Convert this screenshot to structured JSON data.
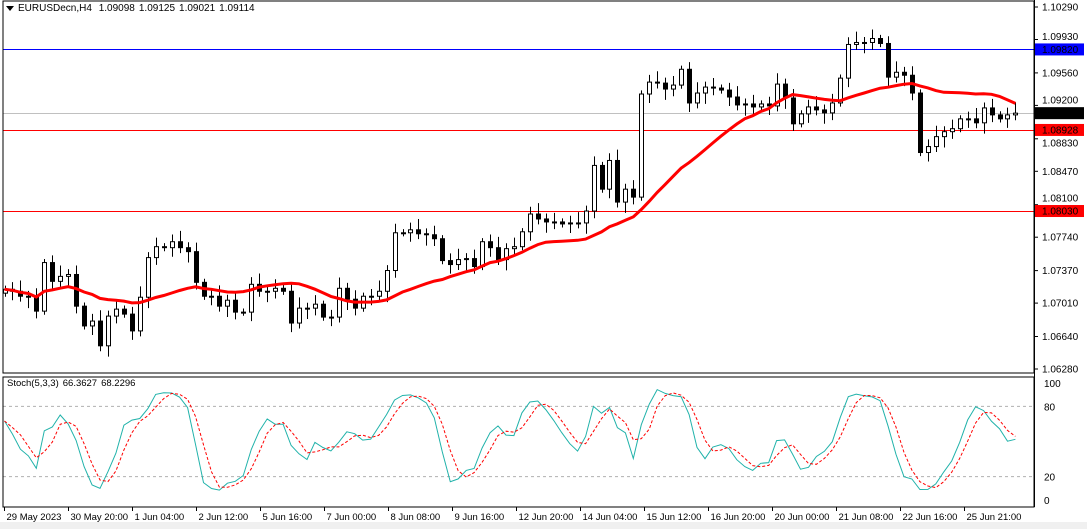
{
  "header": {
    "symbol": "EURUSDecn,H4",
    "open": "1.09098",
    "high": "1.09125",
    "low": "1.09021",
    "close": "1.09114",
    "menu_icon": "triangle-down-icon"
  },
  "stochastic": {
    "label": "Stoch(5,3,3)",
    "main_value": "66.3627",
    "signal_value": "68.2296",
    "axis_labels": [
      "100",
      "80",
      "20",
      "0"
    ],
    "levels": [
      80,
      20
    ],
    "main_color": "#20B2AA",
    "signal_color": "#FF0000"
  },
  "chart_data": {
    "type": "candlestick",
    "price_axis_labels": [
      "1.10290",
      "1.09930",
      "1.09560",
      "1.09200",
      "1.08830",
      "1.08470",
      "1.08100",
      "1.07740",
      "1.07370",
      "1.07010",
      "1.06640",
      "1.06280"
    ],
    "ylim": [
      1.0628,
      1.1029
    ],
    "time_axis_labels": [
      "29 May 2023",
      "30 May 20:00",
      "1 Jun 04:00",
      "2 Jun 12:00",
      "5 Jun 16:00",
      "7 Jun 00:00",
      "8 Jun 08:00",
      "9 Jun 16:00",
      "12 Jun 20:00",
      "14 Jun 04:00",
      "15 Jun 12:00",
      "16 Jun 20:00",
      "20 Jun 00:00",
      "21 Jun 08:00",
      "22 Jun 16:00",
      "25 Jun 21:00"
    ],
    "first_open": 1.0712,
    "closes": [
      1.07163,
      1.07141,
      1.07086,
      1.07075,
      1.06921,
      1.07459,
      1.07251,
      1.07306,
      1.07327,
      1.06976,
      1.06757,
      1.06811,
      1.06537,
      1.06866,
      1.06943,
      1.06888,
      1.06702,
      1.07075,
      1.07514,
      1.07635,
      1.07624,
      1.0769,
      1.07624,
      1.0758,
      1.0724,
      1.07086,
      1.07086,
      1.06976,
      1.07042,
      1.0691,
      1.0691,
      1.07218,
      1.07141,
      1.07141,
      1.07174,
      1.07141,
      1.06789,
      1.06954,
      1.06954,
      1.06998,
      1.06855,
      1.06855,
      1.07174,
      1.07053,
      1.06954,
      1.07086,
      1.07086,
      1.07141,
      1.07371,
      1.07789,
      1.07789,
      1.07822,
      1.07778,
      1.07767,
      1.07723,
      1.07481,
      1.07437,
      1.07492,
      1.07503,
      1.07415,
      1.0769,
      1.07624,
      1.07492,
      1.07613,
      1.07635,
      1.078,
      1.07997,
      1.07942,
      1.07909,
      1.07909,
      1.07887,
      1.07898,
      1.07898,
      1.0803,
      1.08535,
      1.08272,
      1.0859,
      1.08129,
      1.08272,
      1.08184,
      1.09326,
      1.09458,
      1.09447,
      1.09381,
      1.09425,
      1.096,
      1.09227,
      1.09337,
      1.09403,
      1.09392,
      1.0937,
      1.09293,
      1.09205,
      1.09216,
      1.09183,
      1.09216,
      1.09194,
      1.09436,
      1.09282,
      1.08996,
      1.09106,
      1.09183,
      1.0915,
      1.09117,
      1.09227,
      1.09502,
      1.09875,
      1.09897,
      1.09897,
      1.09941,
      1.09886,
      1.09513,
      1.09567,
      1.09534,
      1.09337,
      1.08678,
      1.08744,
      1.08854,
      1.08909,
      1.08942,
      1.09051,
      1.09051,
      1.09007,
      1.09172,
      1.09095,
      1.09051,
      1.09095,
      1.09114
    ],
    "moving_average_color": "#FF0000",
    "horizontal_lines": [
      {
        "price": "1.09820",
        "color": "#0000FF",
        "label_text_color": "#FFFFFF"
      },
      {
        "price": "1.09114",
        "color": "#C0C0C0",
        "label_bg": "#000000",
        "label_text_color": "#FFFFFF"
      },
      {
        "price": "1.08928",
        "color": "#FF0000",
        "label_text_color": "#FFFFFF"
      },
      {
        "price": "1.08030",
        "color": "#FF0000",
        "label_text_color": "#FFFFFF"
      }
    ],
    "bull_color": "#FFFFFF",
    "bear_color": "#000000"
  }
}
